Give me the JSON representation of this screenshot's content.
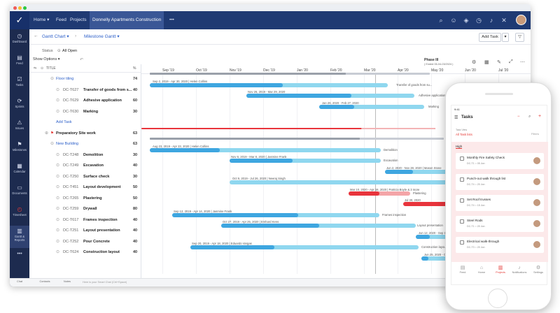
{
  "topbar": {
    "nav": [
      "Home ▾",
      "Feed",
      "Projects",
      "Donnelly Apartments Construction",
      "•••"
    ]
  },
  "sidebar": {
    "items": [
      {
        "label": "Dashboard",
        "icon": "dashboard-icon",
        "glyph": "◷"
      },
      {
        "label": "Feed",
        "icon": "feed-icon",
        "glyph": "▤"
      },
      {
        "label": "Tasks",
        "icon": "tasks-icon",
        "glyph": "☑"
      },
      {
        "label": "Sprints",
        "icon": "sprints-icon",
        "glyph": "⟳"
      },
      {
        "label": "Issues",
        "icon": "issues-icon",
        "glyph": "⚠"
      },
      {
        "label": "Milestones",
        "icon": "milestones-icon",
        "glyph": "⚑"
      },
      {
        "label": "Calendar",
        "icon": "calendar-icon",
        "glyph": "▦"
      },
      {
        "label": "Documents",
        "icon": "documents-icon",
        "glyph": "▭"
      },
      {
        "label": "Timesheet",
        "icon": "timesheet-icon",
        "glyph": "◴"
      },
      {
        "label": "Gantt & Reports",
        "icon": "gantt-icon",
        "glyph": "▥"
      },
      {
        "label": "•••",
        "icon": "more-icon",
        "glyph": ""
      }
    ]
  },
  "toolbar": {
    "view": "Gantt Chart ▾",
    "sub": "Milestone Gantt ▾",
    "add_task": "Add Task",
    "dropdown": "▾"
  },
  "status": {
    "label": "Status",
    "value": "All Open"
  },
  "gantt": {
    "show_options": "Show Options ▾",
    "title_col": "TITLE",
    "pct_col": "%",
    "phase": "Phase III",
    "phase_sub": "( Ended 06-04-03/2024 )",
    "months": [
      "Sep '19",
      "Oct '19",
      "Nov '19",
      "Dec '19",
      "Jan '20",
      "Feb '20",
      "Mar '20",
      "Apr '20",
      "May '20",
      "Jun '20",
      "Jul '20",
      "Aug '20"
    ],
    "add_task": "Add Task",
    "rows": [
      {
        "code": "",
        "name": "Floor tiling",
        "pct": "74",
        "kind": "group"
      },
      {
        "code": "DC-T627",
        "name": "Transfer of goods from s...",
        "pct": "40",
        "kind": "task"
      },
      {
        "code": "DC-T629",
        "name": "Adhesive application",
        "pct": "60",
        "kind": "task"
      },
      {
        "code": "DC-T630",
        "name": "Marking",
        "pct": "30",
        "kind": "task"
      },
      {
        "code": "",
        "name": "Preparatory Site work",
        "pct": "63",
        "kind": "milestone"
      },
      {
        "code": "",
        "name": "New Building",
        "pct": "63",
        "kind": "group"
      },
      {
        "code": "DC-T248",
        "name": "Demolition",
        "pct": "30",
        "kind": "task"
      },
      {
        "code": "DC-T249",
        "name": "Excavation",
        "pct": "40",
        "kind": "task"
      },
      {
        "code": "DC-T250",
        "name": "Surface check",
        "pct": "30",
        "kind": "task"
      },
      {
        "code": "DC-T451",
        "name": "Layout development",
        "pct": "50",
        "kind": "task"
      },
      {
        "code": "DC-T265",
        "name": "Plastering",
        "pct": "50",
        "kind": "task"
      },
      {
        "code": "DC-T259",
        "name": "Drywall",
        "pct": "80",
        "kind": "task"
      },
      {
        "code": "DC-T617",
        "name": "Frames inspection",
        "pct": "40",
        "kind": "task"
      },
      {
        "code": "DC-T251",
        "name": "Layout presentation",
        "pct": "40",
        "kind": "task"
      },
      {
        "code": "DC-T252",
        "name": "Pour Concrete",
        "pct": "40",
        "kind": "task"
      },
      {
        "code": "DC-T624",
        "name": "Construction layout",
        "pct": "40",
        "kind": "task"
      }
    ],
    "bar_labels": {
      "b1": "Sep 2, 2019 - Apr 30, 2020 | Helen Collins",
      "b1r": "Transfer of goods from su...",
      "b2": "Nov 26, 2019 - Mar 29, 2020",
      "b2r": "Adhesive application",
      "b3": "Jan 26, 2020 - Feb 27, 2020",
      "b3r": "Marking",
      "b4": "Aug 23, 2019 - Apr 23, 2020 | Helen Collins",
      "b4r": "Demolition",
      "b5": "Nov 6, 2019 - Mar 8, 2020 | Jasmine Frank",
      "b5r": "Excavation",
      "b6": "Jun 2, 2020 - Nov 28, 2020 | Mason Stone",
      "b7": "Oct 9, 2019 - Jul 26, 2020 | Neeraj Singh",
      "b8": "Mar 10, 2020 - Apr 16, 2020 | Patricia Boyle & 3 more",
      "b8r": "Plastering",
      "b9": "Jul 30, 2020",
      "b10": "Sep 12, 2019 - Apr 14, 2020 | Jasmine Frank",
      "b10r": "Frames inspection",
      "b11": "Oct 27, 2019 - Apr 25, 2020 | Emhard Kens",
      "b11r": "Layout presentation",
      "b12": "Jun 12, 2020 - Sep 16, 2020",
      "b13": "Sep 20, 2019 - Apr 18, 2020 | Eduardo Vargas",
      "b13r": "Construction layout",
      "b14": "Jun 25, 2020 - Oct 27, 2020"
    }
  },
  "bottombar": {
    "items": [
      "Chat",
      "Contacts",
      "Notes"
    ],
    "placeholder": "Here is your Smart Chat (Ctrl+Space)"
  },
  "phone": {
    "time": "9:41",
    "title": "Tasks",
    "task_view": "Task View",
    "all_task_lists": "All Task lists",
    "filters": "Filters",
    "group": "High",
    "cards": [
      {
        "title": "Monthly Fire Safety Check",
        "meta": "DC-T1 ○ 05 Jun"
      },
      {
        "title": "Punch-out walk through list",
        "meta": "DC-T4 ○ 20 Jun"
      },
      {
        "title": "Set Roof trusses",
        "meta": "DC-T4 ○ 15 Jun"
      },
      {
        "title": "Steel Rods",
        "meta": "DC-T1 ○ 20 Jun"
      },
      {
        "title": "Electrical walk-through",
        "meta": "DC-T3 ○ 20 Jun"
      }
    ],
    "tabs": [
      "Feed",
      "Home",
      "Projects",
      "Notifications",
      "Settings"
    ]
  },
  "colors": {
    "topbar": "#1f3a73",
    "sidebar": "#1d2b4f",
    "bar_blue": "#3ea6e0",
    "bar_light": "#8fd7ef",
    "bar_red": "#e8343c",
    "accent_red": "#e53935"
  }
}
